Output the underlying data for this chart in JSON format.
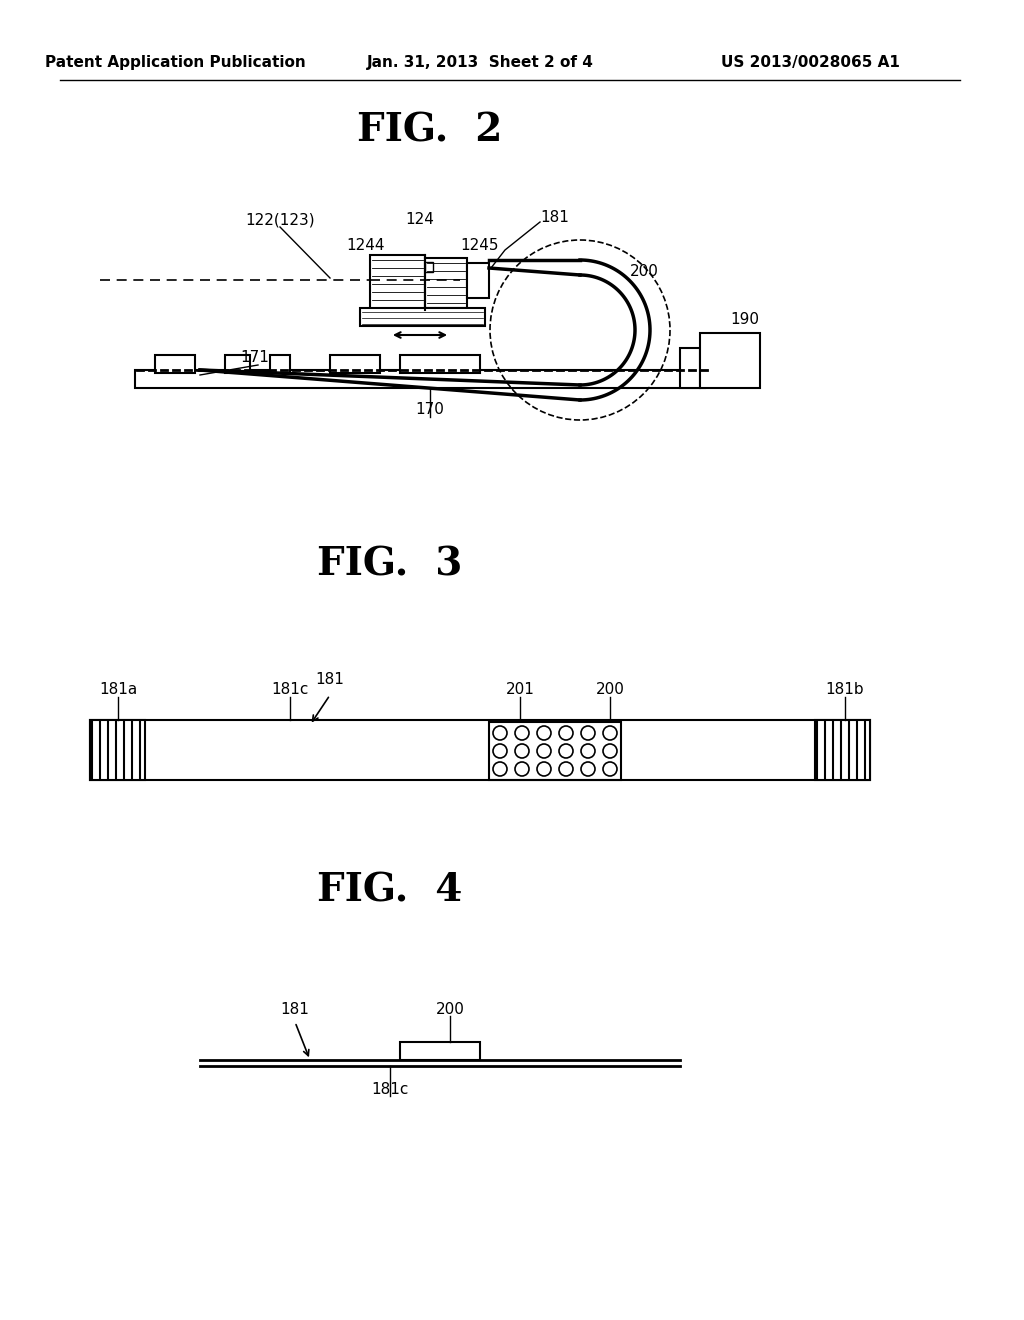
{
  "header_left": "Patent Application Publication",
  "header_center": "Jan. 31, 2013  Sheet 2 of 4",
  "header_right": "US 2013/0028065 A1",
  "fig2_title": "FIG.  2",
  "fig3_title": "FIG.  3",
  "fig4_title": "FIG.  4",
  "background_color": "#ffffff",
  "line_color": "#000000"
}
